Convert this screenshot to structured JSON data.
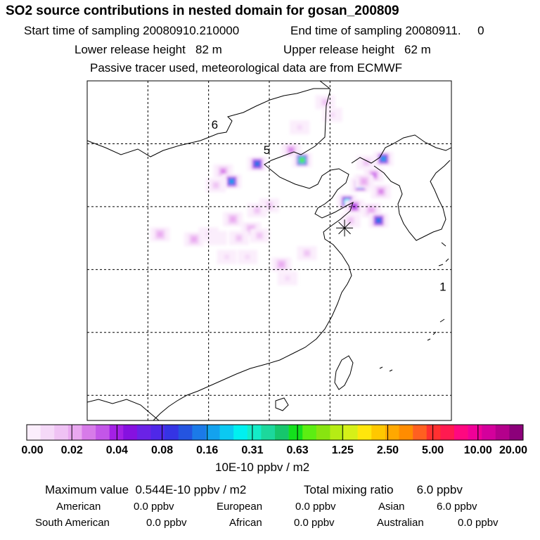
{
  "header": {
    "title": "SO2 source contributions in nested domain for gosan_200809",
    "start": "Start time of sampling 20080910.210000",
    "end": "End time of sampling 20080911.     0",
    "lower": "Lower release height   82 m",
    "upper": "Upper release height   62 m",
    "note": "Passive tracer used, meteorological data are from ECMWF"
  },
  "chart_data": {
    "type": "heatmap",
    "title": "SO2 source contributions in nested domain for gosan_200809",
    "colorbar": {
      "unit": "10E-10 ppbv / m2",
      "ticks": [
        "0.00",
        "0.02",
        "0.04",
        "0.08",
        "0.16",
        "0.31",
        "0.63",
        "1.25",
        "2.50",
        "5.00",
        "10.00",
        "20.00"
      ],
      "colors": [
        "#fbeefc",
        "#f5d9f8",
        "#efc2f4",
        "#e9a8f0",
        "#d77be9",
        "#c356e8",
        "#a420e6",
        "#8611e0",
        "#6a22e6",
        "#4f28e8",
        "#3534e4",
        "#2454e0",
        "#1b7ae8",
        "#13a2ee",
        "#0bc9f2",
        "#00f0f0",
        "#14ecc8",
        "#1cd89c",
        "#16c66c",
        "#14e01c",
        "#5cee12",
        "#88e410",
        "#b6ec14",
        "#d6f018",
        "#ffe60c",
        "#ffc800",
        "#ffa800",
        "#ff8c00",
        "#ff6020",
        "#ff3030",
        "#ff1a50",
        "#ff0880",
        "#f00098",
        "#d4009c",
        "#b4008c",
        "#8c007a"
      ]
    },
    "map": {
      "lon_range": [
        105,
        135
      ],
      "lat_range": [
        18,
        45
      ],
      "grid_lon": [
        110,
        115,
        120,
        125
      ],
      "grid_lat": [
        20,
        25,
        30,
        35,
        40
      ],
      "labels": [
        {
          "text": "6",
          "lon": 115.5,
          "lat": 41.2
        },
        {
          "text": "5",
          "lon": 119.8,
          "lat": 39.2
        },
        {
          "text": "1",
          "lon": 134.3,
          "lat": 28.3
        }
      ],
      "receptor": {
        "name": "gosan",
        "lon": 126.2,
        "lat": 33.3
      },
      "hotspots": [
        {
          "lon": 122.5,
          "lat": 41.3,
          "level": 1
        },
        {
          "lon": 124.6,
          "lat": 43.3,
          "level": 2
        },
        {
          "lon": 121.8,
          "lat": 39.5,
          "level": 4
        },
        {
          "lon": 122.7,
          "lat": 38.7,
          "level": 20
        },
        {
          "lon": 119.0,
          "lat": 38.4,
          "level": 12
        },
        {
          "lon": 116.2,
          "lat": 37.8,
          "level": 4
        },
        {
          "lon": 116.9,
          "lat": 37.0,
          "level": 13
        },
        {
          "lon": 115.6,
          "lat": 36.7,
          "level": 2
        },
        {
          "lon": 128.0,
          "lat": 38.5,
          "level": 2
        },
        {
          "lon": 129.4,
          "lat": 38.8,
          "level": 13
        },
        {
          "lon": 128.6,
          "lat": 37.5,
          "level": 5
        },
        {
          "lon": 127.5,
          "lat": 36.7,
          "level": 13
        },
        {
          "lon": 126.4,
          "lat": 35.4,
          "level": 15
        },
        {
          "lon": 127.0,
          "lat": 35.0,
          "level": 6
        },
        {
          "lon": 128.4,
          "lat": 34.7,
          "level": 3
        },
        {
          "lon": 129.0,
          "lat": 33.9,
          "level": 12
        },
        {
          "lon": 120.0,
          "lat": 35.1,
          "level": 2
        },
        {
          "lon": 119.0,
          "lat": 34.7,
          "level": 2
        },
        {
          "lon": 117.0,
          "lat": 34.0,
          "level": 3
        },
        {
          "lon": 118.5,
          "lat": 33.2,
          "level": 3
        },
        {
          "lon": 119.2,
          "lat": 32.7,
          "level": 2
        },
        {
          "lon": 115.0,
          "lat": 32.8,
          "level": 1
        },
        {
          "lon": 115.7,
          "lat": 32.5,
          "level": 0
        },
        {
          "lon": 113.8,
          "lat": 32.4,
          "level": 3
        },
        {
          "lon": 117.5,
          "lat": 32.5,
          "level": 2
        },
        {
          "lon": 116.5,
          "lat": 31.0,
          "level": 1
        },
        {
          "lon": 118.2,
          "lat": 31.0,
          "level": 1
        },
        {
          "lon": 111.0,
          "lat": 32.8,
          "level": 3
        },
        {
          "lon": 123.1,
          "lat": 31.3,
          "level": 2
        },
        {
          "lon": 121.0,
          "lat": 30.4,
          "level": 3
        },
        {
          "lon": 121.5,
          "lat": 29.3,
          "level": 1
        },
        {
          "lon": 125.2,
          "lat": 42.3,
          "level": 1
        },
        {
          "lon": 127.8,
          "lat": 37.0,
          "level": 3
        },
        {
          "lon": 126.7,
          "lat": 33.9,
          "level": 2
        },
        {
          "lon": 129.2,
          "lat": 36.2,
          "level": 4
        }
      ]
    }
  },
  "stats": {
    "max_value": "Maximum value  0.544E-10 ppbv / m2",
    "total": "Total mixing ratio       6.0 ppbv",
    "regions": [
      {
        "name": "American",
        "value": "0.0 ppbv"
      },
      {
        "name": "European",
        "value": "0.0 ppbv"
      },
      {
        "name": "Asian",
        "value": "6.0 ppbv"
      },
      {
        "name": "South American",
        "value": "0.0 ppbv"
      },
      {
        "name": "African",
        "value": "0.0 ppbv"
      },
      {
        "name": "Australian",
        "value": "0.0 ppbv"
      }
    ]
  }
}
